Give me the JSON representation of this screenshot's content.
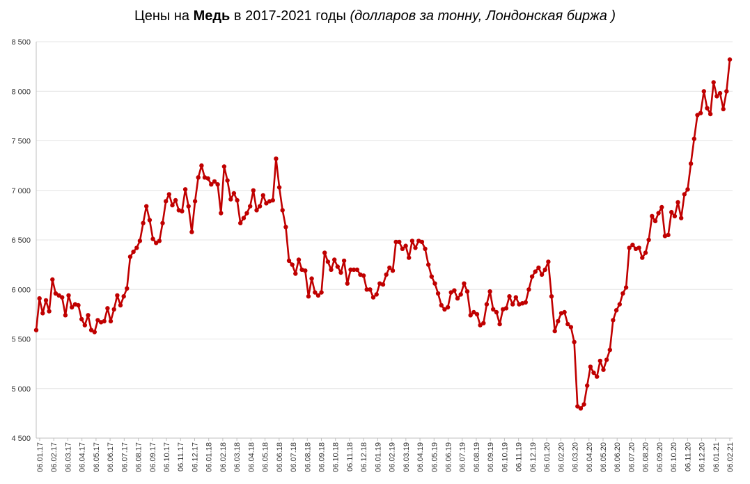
{
  "title": {
    "prefix": "Цены на ",
    "bold": "Медь",
    "middle": " в 2017-2021 годы ",
    "italic": "(долларов за тонну, Лондонская биржа )"
  },
  "chart_data": {
    "type": "line",
    "title": "Цены на Медь в 2017-2021 годы (долларов за тонну, Лондонская биржа )",
    "xlabel": "",
    "ylabel": "",
    "ylim": [
      4500,
      8500
    ],
    "yticks": [
      4500,
      5000,
      5500,
      6000,
      6500,
      7000,
      7500,
      8000,
      8500
    ],
    "ytick_labels": [
      "4 500",
      "5 000",
      "5 500",
      "6 000",
      "6 500",
      "7 000",
      "7 500",
      "8 000",
      "8 500"
    ],
    "xtick_labels": [
      "06.01.17",
      "06.02.17",
      "06.03.17",
      "06.04.17",
      "06.05.17",
      "06.06.17",
      "06.07.17",
      "06.08.17",
      "06.09.17",
      "06.10.17",
      "06.11.17",
      "06.12.17",
      "06.01.18",
      "06.02.18",
      "06.03.18",
      "06.04.18",
      "06.05.18",
      "06.06.18",
      "06.07.18",
      "06.08.18",
      "06.09.18",
      "06.10.18",
      "06.11.18",
      "06.12.18",
      "06.01.19",
      "06.02.19",
      "06.03.19",
      "06.04.19",
      "06.05.19",
      "06.06.19",
      "06.07.19",
      "06.08.19",
      "06.09.19",
      "06.10.19",
      "06.11.19",
      "06.12.19",
      "06.01.20",
      "06.02.20",
      "06.03.20",
      "06.04.20",
      "06.05.20",
      "06.06.20",
      "06.07.20",
      "06.08.20",
      "06.09.20",
      "06.10.20",
      "06.11.20",
      "06.12.20",
      "06.01.21",
      "06.02.21"
    ],
    "grid": true,
    "line_color": "#C00000",
    "series": [
      {
        "values": [
          5590,
          5910,
          5760,
          5890,
          5780,
          6100,
          5960,
          5940,
          5920,
          5740,
          5940,
          5820,
          5850,
          5840,
          5700,
          5640,
          5740,
          5590,
          5570,
          5690,
          5670,
          5680,
          5810,
          5680,
          5800,
          5940,
          5840,
          5930,
          6010,
          6330,
          6380,
          6420,
          6490,
          6670,
          6840,
          6700,
          6510,
          6470,
          6490,
          6670,
          6890,
          6960,
          6850,
          6900,
          6800,
          6790,
          7010,
          6840,
          6580,
          6890,
          7130,
          7250,
          7130,
          7120,
          7060,
          7090,
          7060,
          6770,
          7240,
          7100,
          6910,
          6970,
          6900,
          6670,
          6720,
          6770,
          6840,
          7000,
          6800,
          6840,
          6950,
          6870,
          6890,
          6900,
          7320,
          7030,
          6800,
          6630,
          6290,
          6250,
          6160,
          6300,
          6200,
          6190,
          5930,
          6110,
          5970,
          5940,
          5970,
          6370,
          6280,
          6200,
          6300,
          6230,
          6170,
          6290,
          6060,
          6200,
          6200,
          6200,
          6150,
          6140,
          6000,
          6000,
          5920,
          5950,
          6060,
          6050,
          6150,
          6220,
          6190,
          6480,
          6480,
          6410,
          6440,
          6320,
          6490,
          6420,
          6490,
          6480,
          6410,
          6250,
          6130,
          6060,
          5960,
          5840,
          5800,
          5820,
          5970,
          5990,
          5910,
          5950,
          6060,
          5980,
          5740,
          5770,
          5750,
          5640,
          5660,
          5850,
          5980,
          5800,
          5770,
          5650,
          5800,
          5810,
          5930,
          5850,
          5920,
          5850,
          5860,
          5870,
          6000,
          6130,
          6180,
          6220,
          6150,
          6200,
          6280,
          5930,
          5580,
          5680,
          5760,
          5770,
          5650,
          5620,
          5470,
          4820,
          4800,
          4840,
          5030,
          5220,
          5160,
          5120,
          5280,
          5190,
          5290,
          5390,
          5690,
          5790,
          5850,
          5960,
          6020,
          6420,
          6450,
          6410,
          6420,
          6320,
          6370,
          6500,
          6740,
          6690,
          6770,
          6830,
          6540,
          6550,
          6780,
          6740,
          6880,
          6720,
          6960,
          7010,
          7270,
          7520,
          7760,
          7780,
          8000,
          7830,
          7770,
          8090,
          7950,
          7980,
          7820,
          8000,
          8320
        ]
      }
    ]
  }
}
